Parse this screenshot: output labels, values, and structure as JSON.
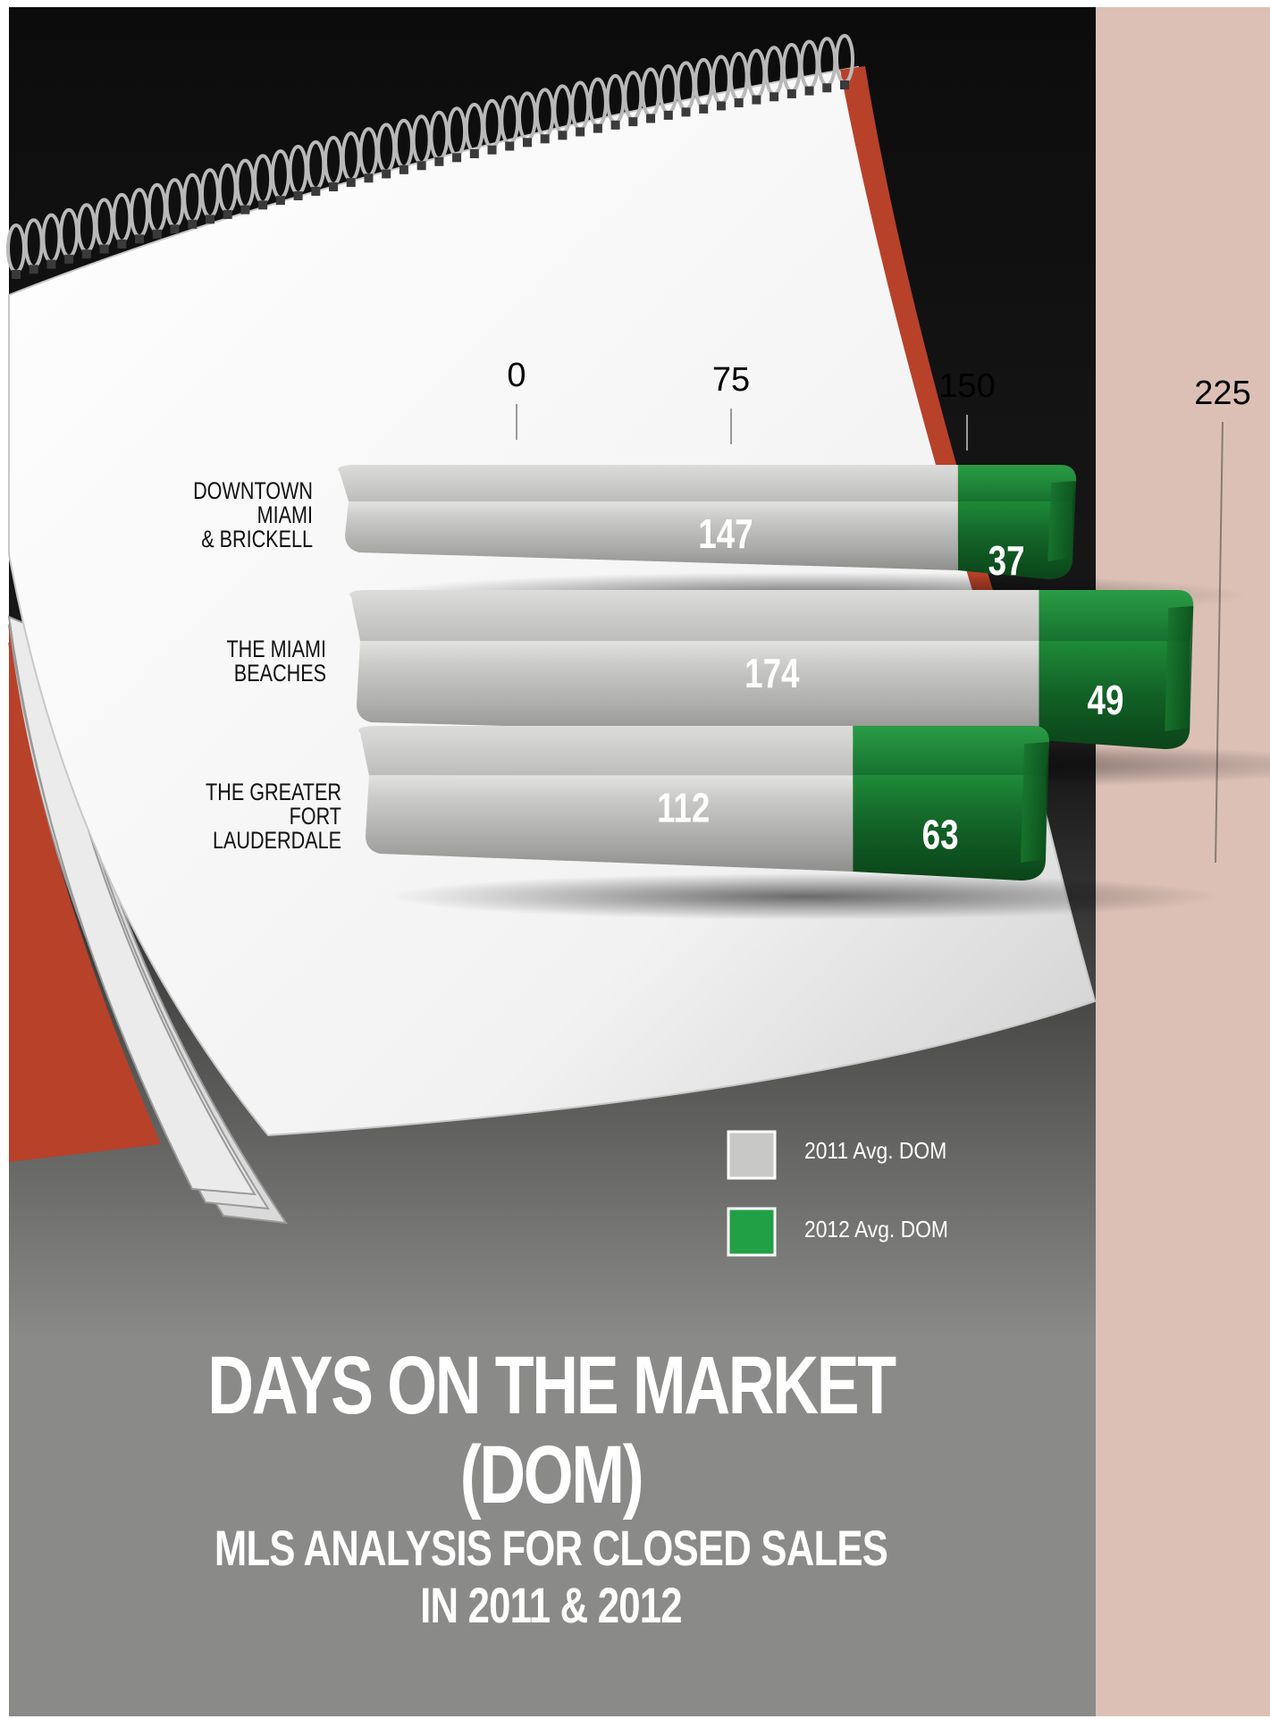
{
  "title": {
    "main": "DAYS ON THE MARKET (DOM)",
    "sub1": "MLS ANALYSIS FOR CLOSED SALES",
    "sub2": "IN 2011 & 2012"
  },
  "colors": {
    "series_2011": "#c8c8c6",
    "series_2012": "#1f7a32",
    "legend_2012": "#22a045",
    "side_panel": "#dcc0b6",
    "bottom_panel": "#8a8b89"
  },
  "chart_data": {
    "type": "bar",
    "orientation": "horizontal",
    "stacked": true,
    "categories": [
      [
        "DOWNTOWN",
        "MIAMI",
        "& BRICKELL"
      ],
      [
        "THE MIAMI",
        "BEACHES"
      ],
      [
        "THE GREATER",
        "FORT",
        "LAUDERDALE"
      ]
    ],
    "series": [
      {
        "name": "2011 Avg. DOM",
        "values": [
          147,
          174,
          112
        ]
      },
      {
        "name": "2012 Avg. DOM",
        "values": [
          37,
          49,
          63
        ]
      }
    ],
    "ticks": [
      "0",
      "75",
      "150",
      "225"
    ],
    "xlim": [
      0,
      225
    ]
  }
}
